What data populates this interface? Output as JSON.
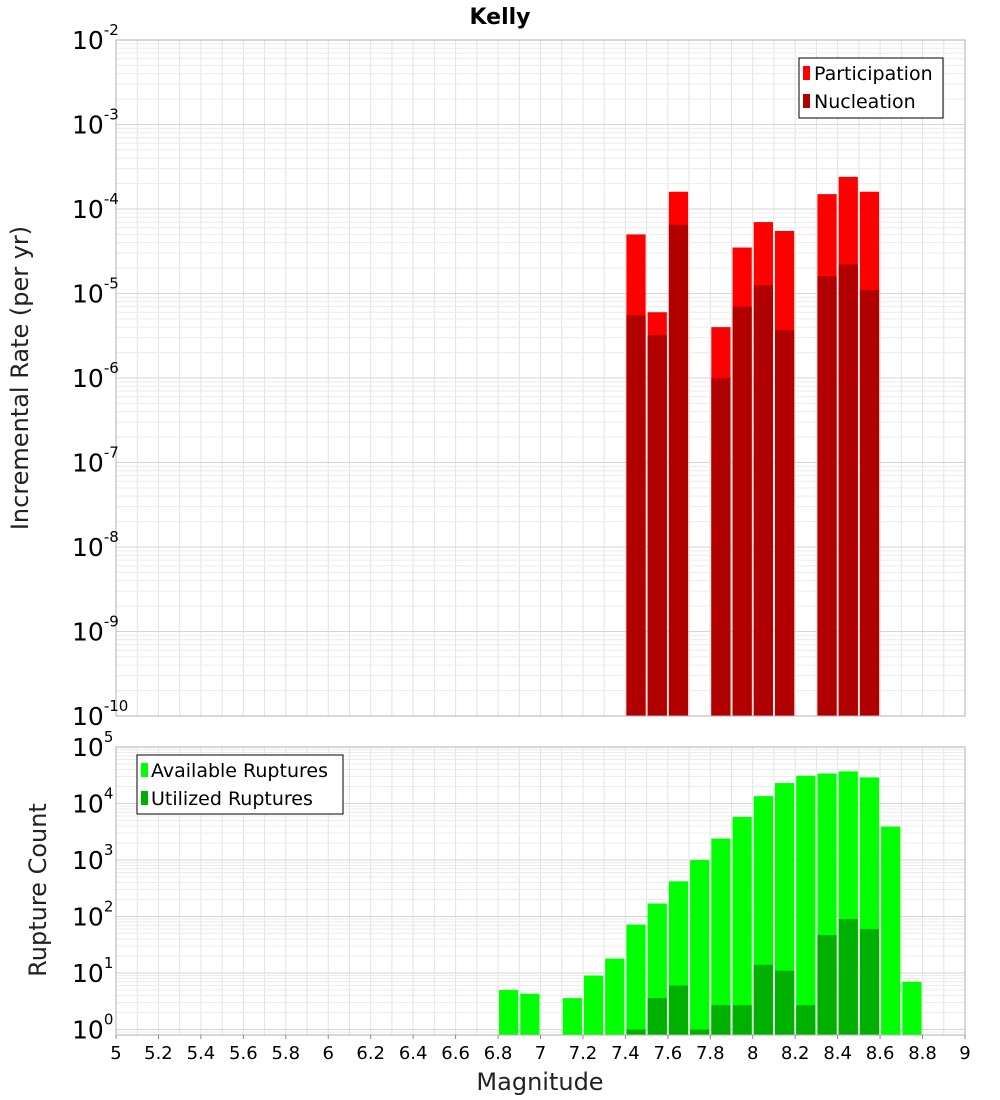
{
  "chart_data": [
    {
      "type": "bar",
      "title": "Kelly",
      "xlabel": "",
      "ylabel": "Incremental Rate (per yr)",
      "yscale": "log",
      "ylim": [
        1e-10,
        0.01
      ],
      "xlim": [
        5,
        9
      ],
      "grid": true,
      "legend_position": "top-right",
      "y_ticks": [
        {
          "base": "10",
          "exp": "-10",
          "value": 1e-10
        },
        {
          "base": "10",
          "exp": "-9",
          "value": 1e-09
        },
        {
          "base": "10",
          "exp": "-8",
          "value": 1e-08
        },
        {
          "base": "10",
          "exp": "-7",
          "value": 1e-07
        },
        {
          "base": "10",
          "exp": "-6",
          "value": 1e-06
        },
        {
          "base": "10",
          "exp": "-5",
          "value": 1e-05
        },
        {
          "base": "10",
          "exp": "-4",
          "value": 0.0001
        },
        {
          "base": "10",
          "exp": "-3",
          "value": 0.001
        },
        {
          "base": "10",
          "exp": "-2",
          "value": 0.01
        }
      ],
      "series": [
        {
          "name": "Participation",
          "color": "#ff0000",
          "points": [
            {
              "x": 7.45,
              "y": 5e-05
            },
            {
              "x": 7.55,
              "y": 6e-06
            },
            {
              "x": 7.65,
              "y": 0.00016
            },
            {
              "x": 7.85,
              "y": 4e-06
            },
            {
              "x": 7.95,
              "y": 3.5e-05
            },
            {
              "x": 8.05,
              "y": 7e-05
            },
            {
              "x": 8.15,
              "y": 5.5e-05
            },
            {
              "x": 8.35,
              "y": 0.00015
            },
            {
              "x": 8.45,
              "y": 0.00024
            },
            {
              "x": 8.55,
              "y": 0.00016
            }
          ]
        },
        {
          "name": "Nucleation",
          "color": "#b00000",
          "points": [
            {
              "x": 7.45,
              "y": 5.5e-06
            },
            {
              "x": 7.55,
              "y": 3.2e-06
            },
            {
              "x": 7.65,
              "y": 6.5e-05
            },
            {
              "x": 7.85,
              "y": 1e-06
            },
            {
              "x": 7.95,
              "y": 7e-06
            },
            {
              "x": 8.05,
              "y": 1.25e-05
            },
            {
              "x": 8.15,
              "y": 3.7e-06
            },
            {
              "x": 8.35,
              "y": 1.6e-05
            },
            {
              "x": 8.45,
              "y": 2.2e-05
            },
            {
              "x": 8.55,
              "y": 1.1e-05
            }
          ]
        }
      ]
    },
    {
      "type": "bar",
      "title": "",
      "xlabel": "Magnitude",
      "ylabel": "Rupture Count",
      "yscale": "log",
      "ylim": [
        0.8,
        100000.0
      ],
      "xlim": [
        5,
        9
      ],
      "grid": true,
      "legend_position": "top-left",
      "x_ticks": [
        "5",
        "5.2",
        "5.4",
        "5.6",
        "5.8",
        "6",
        "6.2",
        "6.4",
        "6.6",
        "6.8",
        "7",
        "7.2",
        "7.4",
        "7.6",
        "7.8",
        "8",
        "8.2",
        "8.4",
        "8.6",
        "8.8",
        "9"
      ],
      "x_tick_values": [
        5,
        5.2,
        5.4,
        5.6,
        5.8,
        6,
        6.2,
        6.4,
        6.6,
        6.8,
        7,
        7.2,
        7.4,
        7.6,
        7.8,
        8,
        8.2,
        8.4,
        8.6,
        8.8,
        9
      ],
      "y_ticks": [
        {
          "base": "10",
          "exp": "0",
          "value": 1
        },
        {
          "base": "10",
          "exp": "1",
          "value": 10
        },
        {
          "base": "10",
          "exp": "2",
          "value": 100
        },
        {
          "base": "10",
          "exp": "3",
          "value": 1000
        },
        {
          "base": "10",
          "exp": "4",
          "value": 10000
        },
        {
          "base": "10",
          "exp": "5",
          "value": 100000
        }
      ],
      "series": [
        {
          "name": "Available Ruptures",
          "color": "#00ff00",
          "points": [
            {
              "x": 6.85,
              "y": 5
            },
            {
              "x": 6.95,
              "y": 4.3
            },
            {
              "x": 7.15,
              "y": 3.6
            },
            {
              "x": 7.25,
              "y": 9
            },
            {
              "x": 7.35,
              "y": 18
            },
            {
              "x": 7.45,
              "y": 72
            },
            {
              "x": 7.55,
              "y": 170
            },
            {
              "x": 7.65,
              "y": 420
            },
            {
              "x": 7.75,
              "y": 1000
            },
            {
              "x": 7.85,
              "y": 2400
            },
            {
              "x": 7.95,
              "y": 5800
            },
            {
              "x": 8.05,
              "y": 13500
            },
            {
              "x": 8.15,
              "y": 23000
            },
            {
              "x": 8.25,
              "y": 31000
            },
            {
              "x": 8.35,
              "y": 34000
            },
            {
              "x": 8.45,
              "y": 37000
            },
            {
              "x": 8.55,
              "y": 29000
            },
            {
              "x": 8.65,
              "y": 3900
            },
            {
              "x": 8.75,
              "y": 7
            }
          ]
        },
        {
          "name": "Utilized Ruptures",
          "color": "#00b000",
          "points": [
            {
              "x": 7.45,
              "y": 1
            },
            {
              "x": 7.55,
              "y": 3.6
            },
            {
              "x": 7.65,
              "y": 6
            },
            {
              "x": 7.75,
              "y": 1
            },
            {
              "x": 7.85,
              "y": 2.7
            },
            {
              "x": 7.95,
              "y": 2.7
            },
            {
              "x": 8.05,
              "y": 14
            },
            {
              "x": 8.15,
              "y": 11
            },
            {
              "x": 8.25,
              "y": 2.7
            },
            {
              "x": 8.35,
              "y": 47
            },
            {
              "x": 8.45,
              "y": 90
            },
            {
              "x": 8.55,
              "y": 60
            }
          ]
        }
      ]
    }
  ]
}
